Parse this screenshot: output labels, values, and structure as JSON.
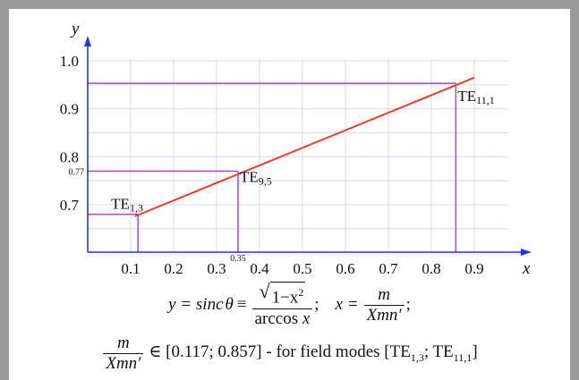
{
  "chart_data": {
    "type": "line",
    "xlabel": "x",
    "ylabel": "y",
    "xlim": [
      0,
      1.0
    ],
    "ylim": [
      0.6,
      1.02
    ],
    "grid": true,
    "x_ticks": [
      "0.1",
      "0.2",
      "0.3",
      "0.4",
      "0.5",
      "0.6",
      "0.7",
      "0.8",
      "0.9"
    ],
    "x_tick_values": [
      0.1,
      0.2,
      0.3,
      0.4,
      0.5,
      0.6,
      0.7,
      0.8,
      0.9
    ],
    "y_ticks": [
      "0.7",
      "0.8",
      "0.9",
      "1.0"
    ],
    "y_tick_values": [
      0.7,
      0.8,
      0.9,
      1.0
    ],
    "extra_x_tick": {
      "label": "0.35",
      "value": 0.35
    },
    "extra_y_tick": {
      "label": "0.77",
      "value": 0.77
    },
    "series": [
      {
        "x": [
          0.11,
          0.9
        ],
        "y": [
          0.676,
          0.965
        ]
      }
    ],
    "annotations": [
      {
        "base": "TE",
        "sub": "1,3",
        "x": 0.117,
        "y": 0.68
      },
      {
        "base": "TE",
        "sub": "9,5",
        "x": 0.35,
        "y": 0.77
      },
      {
        "base": "TE",
        "sub": "11,1",
        "x": 0.857,
        "y": 0.953
      }
    ],
    "colors": {
      "line": "#f03c28",
      "guides": "#b44fd0",
      "grid": "#d8d8f4",
      "axes": "#2036e8"
    }
  },
  "formula": {
    "y_eq": "y = sinc",
    "theta": "θ",
    "equiv": "≡",
    "sqrt_num": "1−x",
    "sqrt_exp": "2",
    "den": "arccos",
    "den_var": "x",
    "semi1": ";",
    "x_eq": "x =",
    "m": "m",
    "xmn": "Xmn′",
    "semi2": ";",
    "in_range": "∈ [0.117; 0.857] - for field modes [TE",
    "sub1": "1,3",
    "mid": "; TE",
    "sub2": "11,1",
    "close": "]"
  }
}
